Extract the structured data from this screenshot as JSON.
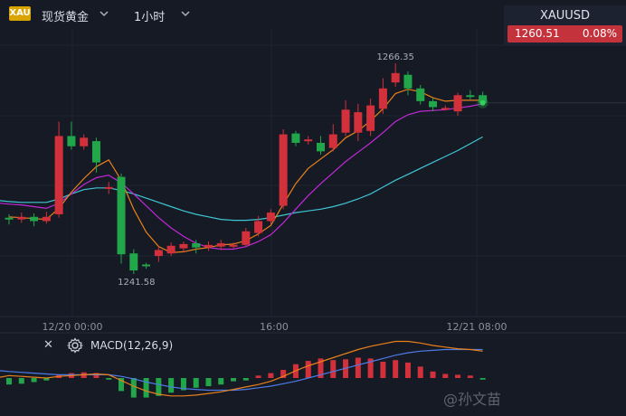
{
  "header": {
    "symbol_badge": "XAU",
    "symbol_name": "现货黄金",
    "interval": "1小时"
  },
  "quote": {
    "symbol": "XAUUSD",
    "price": "1260.51",
    "change": "0.08%"
  },
  "macd": {
    "label": "MACD(12,26,9)"
  },
  "watermark": "@孙文苗",
  "colors": {
    "background": "#161a25",
    "up": "#d2313c",
    "down": "#21a64a",
    "ma_fast": "#e8801a",
    "ma_mid": "#c02ad6",
    "ma_slow": "#3ec6d4"
  },
  "chart_data": {
    "type": "candlestick",
    "x_ticks": [
      "12/20 00:00",
      "16:00",
      "12/21 08:00"
    ],
    "annotations": [
      {
        "text": "1266.35",
        "kind": "high"
      },
      {
        "text": "1241.58",
        "kind": "low"
      }
    ],
    "candles": [
      {
        "o": 1248.2,
        "c": 1248.0,
        "h": 1248.6,
        "l": 1247.4
      },
      {
        "o": 1248.0,
        "c": 1248.3,
        "h": 1248.8,
        "l": 1247.6
      },
      {
        "o": 1248.3,
        "c": 1247.8,
        "h": 1248.7,
        "l": 1247.2
      },
      {
        "o": 1247.8,
        "c": 1248.3,
        "h": 1248.9,
        "l": 1247.5
      },
      {
        "o": 1248.6,
        "c": 1257.8,
        "h": 1259.5,
        "l": 1248.2
      },
      {
        "o": 1257.8,
        "c": 1256.6,
        "h": 1259.5,
        "l": 1256.2
      },
      {
        "o": 1256.6,
        "c": 1257.6,
        "h": 1258.0,
        "l": 1256.2
      },
      {
        "o": 1257.2,
        "c": 1254.7,
        "h": 1257.6,
        "l": 1253.5
      },
      {
        "o": 1251.8,
        "c": 1251.8,
        "h": 1252.4,
        "l": 1251.0
      },
      {
        "o": 1253.0,
        "c": 1243.9,
        "h": 1253.4,
        "l": 1242.8
      },
      {
        "o": 1244.0,
        "c": 1242.0,
        "h": 1244.5,
        "l": 1241.58
      },
      {
        "o": 1242.7,
        "c": 1242.5,
        "h": 1242.9,
        "l": 1242.2
      },
      {
        "o": 1243.7,
        "c": 1244.4,
        "h": 1244.8,
        "l": 1243.0
      },
      {
        "o": 1244.0,
        "c": 1244.9,
        "h": 1245.3,
        "l": 1243.7
      },
      {
        "o": 1244.6,
        "c": 1245.1,
        "h": 1245.4,
        "l": 1244.2
      },
      {
        "o": 1245.2,
        "c": 1244.7,
        "h": 1245.6,
        "l": 1244.0
      },
      {
        "o": 1244.7,
        "c": 1245.0,
        "h": 1245.4,
        "l": 1244.3
      },
      {
        "o": 1244.8,
        "c": 1245.2,
        "h": 1245.6,
        "l": 1244.4
      },
      {
        "o": 1245.0,
        "c": 1245.0,
        "h": 1245.3,
        "l": 1244.6
      },
      {
        "o": 1245.0,
        "c": 1246.6,
        "h": 1247.0,
        "l": 1244.8
      },
      {
        "o": 1246.4,
        "c": 1247.8,
        "h": 1248.4,
        "l": 1246.0
      },
      {
        "o": 1247.8,
        "c": 1248.8,
        "h": 1249.2,
        "l": 1247.4
      },
      {
        "o": 1249.6,
        "c": 1258.0,
        "h": 1258.6,
        "l": 1249.2
      },
      {
        "o": 1258.1,
        "c": 1257.0,
        "h": 1258.4,
        "l": 1256.6
      },
      {
        "o": 1257.4,
        "c": 1257.4,
        "h": 1257.8,
        "l": 1256.8
      },
      {
        "o": 1257.0,
        "c": 1256.0,
        "h": 1257.8,
        "l": 1255.6
      },
      {
        "o": 1256.4,
        "c": 1258.0,
        "h": 1259.2,
        "l": 1256.0
      },
      {
        "o": 1258.2,
        "c": 1260.9,
        "h": 1262.0,
        "l": 1257.8
      },
      {
        "o": 1258.2,
        "c": 1260.6,
        "h": 1261.6,
        "l": 1257.2
      },
      {
        "o": 1258.4,
        "c": 1261.4,
        "h": 1262.2,
        "l": 1257.8
      },
      {
        "o": 1261.0,
        "c": 1263.4,
        "h": 1264.6,
        "l": 1260.4
      },
      {
        "o": 1264.1,
        "c": 1265.2,
        "h": 1266.35,
        "l": 1263.6
      },
      {
        "o": 1265.0,
        "c": 1263.4,
        "h": 1265.4,
        "l": 1262.6
      },
      {
        "o": 1263.4,
        "c": 1261.9,
        "h": 1263.8,
        "l": 1261.5
      },
      {
        "o": 1261.9,
        "c": 1261.2,
        "h": 1262.3,
        "l": 1260.7
      },
      {
        "o": 1261.1,
        "c": 1261.1,
        "h": 1261.4,
        "l": 1260.8
      },
      {
        "o": 1260.7,
        "c": 1262.6,
        "h": 1262.9,
        "l": 1260.2
      },
      {
        "o": 1262.6,
        "c": 1262.4,
        "h": 1263.2,
        "l": 1262.1
      },
      {
        "o": 1262.6,
        "c": 1261.7,
        "h": 1263.0,
        "l": 1261.4
      }
    ],
    "ma_fast": [
      1248.3,
      1248.2,
      1248.1,
      1248.0,
      1249.3,
      1251.2,
      1252.8,
      1254.2,
      1255.0,
      1252.6,
      1249.2,
      1246.5,
      1244.8,
      1244.1,
      1244.2,
      1244.5,
      1244.7,
      1245.0,
      1245.1,
      1245.5,
      1246.3,
      1247.3,
      1249.8,
      1252.2,
      1254.0,
      1255.1,
      1256.2,
      1257.6,
      1258.4,
      1259.6,
      1261.0,
      1262.8,
      1263.3,
      1263.0,
      1262.3,
      1261.9,
      1262.0,
      1262.0,
      1262.0
    ],
    "ma_mid": [
      1249.8,
      1249.7,
      1249.5,
      1249.3,
      1249.9,
      1251.0,
      1252.1,
      1252.9,
      1253.2,
      1252.3,
      1251.0,
      1249.6,
      1248.2,
      1247.0,
      1246.0,
      1245.2,
      1244.7,
      1244.5,
      1244.5,
      1244.8,
      1245.4,
      1246.2,
      1247.6,
      1249.2,
      1250.8,
      1252.2,
      1253.5,
      1254.8,
      1255.9,
      1257.0,
      1258.2,
      1259.5,
      1260.3,
      1260.7,
      1260.8,
      1260.9,
      1261.1,
      1261.3,
      1261.6
    ],
    "ma_slow": [
      1250.1,
      1250.0,
      1250.0,
      1250.0,
      1250.4,
      1251.0,
      1251.5,
      1251.7,
      1251.7,
      1251.4,
      1251.0,
      1250.5,
      1250.0,
      1249.5,
      1249.0,
      1248.6,
      1248.3,
      1248.0,
      1247.9,
      1247.9,
      1248.0,
      1248.2,
      1248.5,
      1248.8,
      1249.0,
      1249.2,
      1249.5,
      1249.9,
      1250.4,
      1251.0,
      1251.8,
      1252.6,
      1253.3,
      1254.0,
      1254.7,
      1255.4,
      1256.1,
      1256.9,
      1257.7
    ],
    "macd_hist": [
      -0.8,
      -0.7,
      -0.5,
      -0.3,
      0.4,
      0.6,
      0.7,
      0.6,
      -0.2,
      -1.6,
      -2.4,
      -2.4,
      -2.2,
      -1.8,
      -1.5,
      -1.2,
      -1.0,
      -0.8,
      -0.4,
      -0.3,
      0.3,
      0.6,
      1.0,
      1.7,
      2.1,
      2.4,
      2.2,
      2.3,
      2.5,
      2.4,
      2.0,
      2.2,
      1.9,
      1.4,
      0.8,
      0.5,
      0.4,
      0.3,
      -0.2
    ],
    "macd_dif": [
      0.3,
      0.2,
      0.1,
      0.0,
      0.2,
      0.3,
      0.4,
      0.5,
      0.4,
      -0.3,
      -1.0,
      -1.6,
      -2.0,
      -2.2,
      -2.2,
      -2.1,
      -1.9,
      -1.7,
      -1.4,
      -1.1,
      -0.8,
      -0.4,
      0.2,
      0.9,
      1.5,
      2.0,
      2.5,
      3.0,
      3.5,
      3.9,
      4.2,
      4.5,
      4.5,
      4.3,
      4.0,
      3.8,
      3.6,
      3.5,
      3.3
    ],
    "macd_dea": [
      0.8,
      0.7,
      0.6,
      0.5,
      0.4,
      0.4,
      0.4,
      0.4,
      0.4,
      0.2,
      -0.1,
      -0.5,
      -0.8,
      -1.1,
      -1.3,
      -1.4,
      -1.5,
      -1.5,
      -1.5,
      -1.4,
      -1.2,
      -1.0,
      -0.7,
      -0.4,
      0.0,
      0.4,
      0.8,
      1.2,
      1.6,
      2.0,
      2.4,
      2.8,
      3.1,
      3.3,
      3.4,
      3.5,
      3.5,
      3.5,
      3.5
    ]
  }
}
